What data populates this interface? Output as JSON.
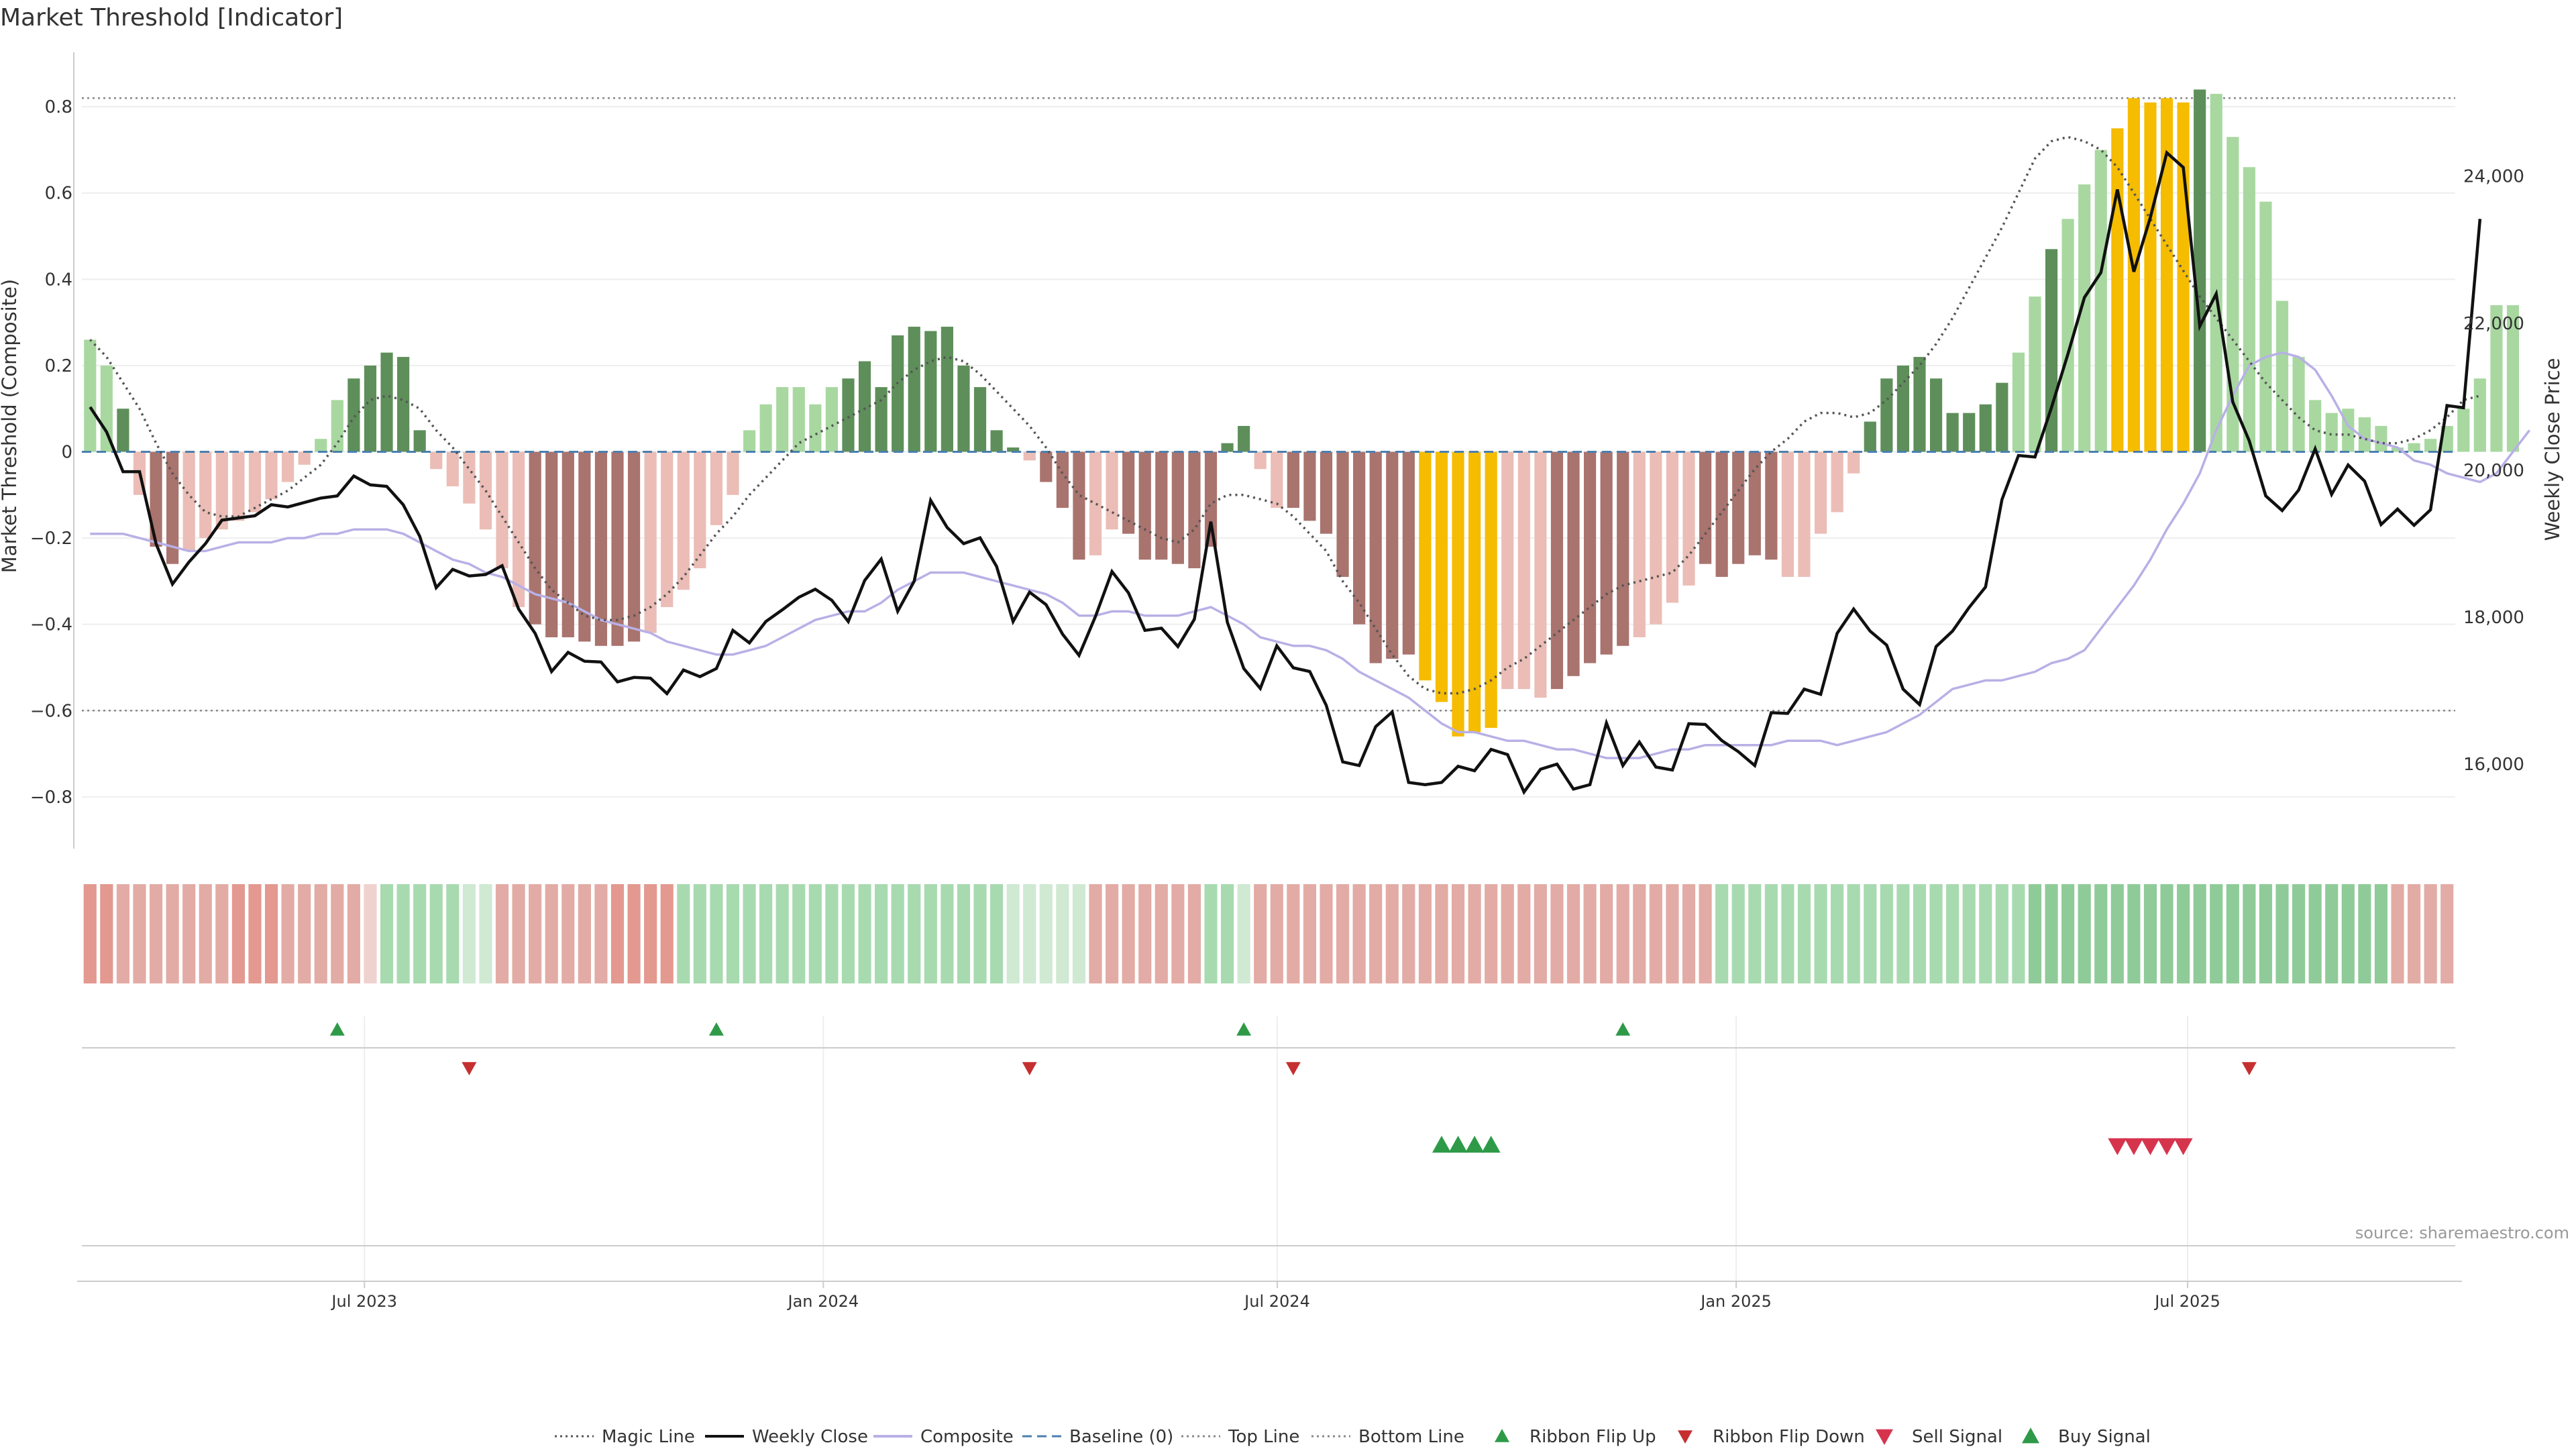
{
  "title": "Market Threshold [Indicator]",
  "source": "source: sharemaestro.com",
  "colors": {
    "dark_green": "#5e8f5a",
    "light_green": "#a8d8a0",
    "dark_red": "#a9736e",
    "light_red": "#ebbdb6",
    "gold": "#f5bc00",
    "weekly_close": "#111111",
    "composite": "#b8b0e6",
    "magic": "#555555",
    "baseline": "#4a7fb0",
    "buy": "#2e9a48",
    "sell": "#d6344d"
  },
  "legend": [
    {
      "label": "Magic Line",
      "kind": "dotted",
      "color": "#555555"
    },
    {
      "label": "Weekly Close",
      "kind": "solid",
      "color": "#111111"
    },
    {
      "label": "Composite",
      "kind": "solid",
      "color": "#b8b0e6"
    },
    {
      "label": "Baseline (0)",
      "kind": "dashed",
      "color": "#4a7fb0"
    },
    {
      "label": "Top Line",
      "kind": "dotted",
      "color": "#888888"
    },
    {
      "label": "Bottom Line",
      "kind": "dotted",
      "color": "#888888"
    },
    {
      "label": "Ribbon Flip Up",
      "kind": "tri-up",
      "color": "#2e9a48"
    },
    {
      "label": "Ribbon Flip Down",
      "kind": "tri-down",
      "color": "#c62f2f"
    },
    {
      "label": "Sell Signal",
      "kind": "tri-down-big",
      "color": "#d6344d"
    },
    {
      "label": "Buy Signal",
      "kind": "tri-up-big",
      "color": "#2e9a48"
    }
  ],
  "chart_data": {
    "type": "bar",
    "title": "Market Threshold [Indicator]",
    "ylabel": "Market Threshold (Composite)",
    "y2label": "Weekly Close Price",
    "ylim": [
      -0.92,
      0.92
    ],
    "y2lim": [
      14850,
      25650
    ],
    "yticks": [
      -0.8,
      -0.6,
      -0.4,
      -0.2,
      0,
      0.2,
      0.4,
      0.6,
      0.8
    ],
    "ytick_labels": [
      "−0.8",
      "−0.6",
      "−0.4",
      "−0.2",
      "0",
      "0.2",
      "0.4",
      "0.6",
      "0.8"
    ],
    "y2ticks": [
      16000,
      18000,
      20000,
      22000,
      24000
    ],
    "y2tick_labels": [
      "16,000",
      "18,000",
      "20,000",
      "22,000",
      "24,000"
    ],
    "top_line": 0.82,
    "bottom_line": -0.6,
    "baseline": 0,
    "x_range": [
      "2023-03-13",
      "2025-10-13"
    ],
    "xticks": [
      {
        "label": "Jul 2023",
        "date": "2023-07-01"
      },
      {
        "label": "Jan 2024",
        "date": "2024-01-01"
      },
      {
        "label": "Jul 2024",
        "date": "2024-07-01"
      },
      {
        "label": "Jan 2025",
        "date": "2025-01-01"
      },
      {
        "label": "Jul 2025",
        "date": "2025-07-01"
      }
    ],
    "n_weeks": 144,
    "composite_bars": [
      0.26,
      0.2,
      0.1,
      -0.1,
      -0.22,
      -0.26,
      -0.23,
      -0.2,
      -0.18,
      -0.16,
      -0.14,
      -0.11,
      -0.07,
      -0.03,
      0.03,
      0.12,
      0.17,
      0.2,
      0.23,
      0.22,
      0.05,
      -0.04,
      -0.08,
      -0.12,
      -0.18,
      -0.27,
      -0.36,
      -0.4,
      -0.43,
      -0.43,
      -0.44,
      -0.45,
      -0.45,
      -0.44,
      -0.42,
      -0.36,
      -0.32,
      -0.27,
      -0.17,
      -0.1,
      0.05,
      0.11,
      0.15,
      0.15,
      0.11,
      0.15,
      0.17,
      0.21,
      0.15,
      0.27,
      0.29,
      0.28,
      0.29,
      0.2,
      0.15,
      0.05,
      0.01,
      -0.02,
      -0.07,
      -0.13,
      -0.25,
      -0.24,
      -0.18,
      -0.19,
      -0.25,
      -0.25,
      -0.26,
      -0.27,
      -0.22,
      0.02,
      0.06,
      -0.04,
      -0.13,
      -0.13,
      -0.16,
      -0.19,
      -0.29,
      -0.4,
      -0.49,
      -0.48,
      -0.47,
      -0.53,
      -0.58,
      -0.66,
      -0.65,
      -0.64,
      -0.55,
      -0.55,
      -0.57,
      -0.55,
      -0.52,
      -0.49,
      -0.47,
      -0.45,
      -0.43,
      -0.4,
      -0.35,
      -0.31,
      -0.26,
      -0.29,
      -0.26,
      -0.24,
      -0.25,
      -0.29,
      -0.29,
      -0.19,
      -0.14,
      -0.05,
      0.07,
      0.17,
      0.2,
      0.22,
      0.17,
      0.09,
      0.09,
      0.11,
      0.16,
      0.23,
      0.36,
      0.47,
      0.54,
      0.62,
      0.7,
      0.75,
      0.82,
      0.81,
      0.82,
      0.81,
      0.84,
      0.83,
      0.73,
      0.66,
      0.58,
      0.35,
      0.22,
      0.12,
      0.09,
      0.1,
      0.08,
      0.06,
      0.01,
      0.02,
      0.03,
      0.06,
      0.1,
      0.17,
      0.34,
      0.34
    ],
    "bar_shades": "lldlddlllllllllldddddlllllldddddddlllllllllllldddddddddddldddllddddddddllddddddddlllllllldddddlllldddddllllldddddddddlldlllldddddlll",
    "gold_bars": [
      81,
      82,
      83,
      84,
      85,
      123,
      124,
      125,
      126,
      127
    ],
    "weekly_close": [
      20860,
      20520,
      19980,
      19980,
      19000,
      18450,
      18750,
      19000,
      19320,
      19350,
      19380,
      19530,
      19500,
      19560,
      19620,
      19650,
      19920,
      19800,
      19780,
      19530,
      19100,
      18400,
      18650,
      18560,
      18580,
      18700,
      18110,
      17780,
      17260,
      17520,
      17400,
      17390,
      17120,
      17180,
      17170,
      16960,
      17280,
      17190,
      17300,
      17820,
      17650,
      17940,
      18100,
      18270,
      18380,
      18230,
      17940,
      18500,
      18790,
      18080,
      18490,
      19590,
      19220,
      19000,
      19080,
      18690,
      17940,
      18340,
      18170,
      17770,
      17480,
      18010,
      18620,
      18330,
      17820,
      17850,
      17600,
      17970,
      19300,
      17930,
      17300,
      17030,
      17610,
      17310,
      17260,
      16800,
      16030,
      15980,
      16510,
      16710,
      15750,
      15720,
      15750,
      15970,
      15910,
      16200,
      16130,
      15620,
      15930,
      16000,
      15660,
      15720,
      16560,
      15980,
      16300,
      15960,
      15920,
      16550,
      16540,
      16320,
      16170,
      15980,
      16700,
      16690,
      17020,
      16950,
      17780,
      18110,
      17810,
      17620,
      17020,
      16810,
      17600,
      17810,
      18130,
      18410,
      19600,
      20200,
      20180,
      20850,
      21580,
      22350,
      22690,
      23820,
      22700,
      23440,
      24320,
      24120,
      21960,
      22400,
      20930,
      20400,
      19650,
      19450,
      19730,
      20290,
      19670,
      20070,
      19850,
      19260,
      19470,
      19250,
      19460,
      20880,
      20850,
      23420
    ],
    "composite": [
      -0.19,
      -0.19,
      -0.19,
      -0.2,
      -0.21,
      -0.22,
      -0.23,
      -0.23,
      -0.22,
      -0.21,
      -0.21,
      -0.21,
      -0.2,
      -0.2,
      -0.19,
      -0.19,
      -0.18,
      -0.18,
      -0.18,
      -0.19,
      -0.21,
      -0.23,
      -0.25,
      -0.26,
      -0.28,
      -0.29,
      -0.31,
      -0.33,
      -0.34,
      -0.35,
      -0.37,
      -0.39,
      -0.4,
      -0.41,
      -0.42,
      -0.44,
      -0.45,
      -0.46,
      -0.47,
      -0.47,
      -0.46,
      -0.45,
      -0.43,
      -0.41,
      -0.39,
      -0.38,
      -0.37,
      -0.37,
      -0.35,
      -0.32,
      -0.3,
      -0.28,
      -0.28,
      -0.28,
      -0.29,
      -0.3,
      -0.31,
      -0.32,
      -0.33,
      -0.35,
      -0.38,
      -0.38,
      -0.37,
      -0.37,
      -0.38,
      -0.38,
      -0.38,
      -0.37,
      -0.36,
      -0.38,
      -0.4,
      -0.43,
      -0.44,
      -0.45,
      -0.45,
      -0.46,
      -0.48,
      -0.51,
      -0.53,
      -0.55,
      -0.57,
      -0.6,
      -0.63,
      -0.65,
      -0.65,
      -0.66,
      -0.67,
      -0.67,
      -0.68,
      -0.69,
      -0.69,
      -0.7,
      -0.71,
      -0.71,
      -0.71,
      -0.7,
      -0.69,
      -0.69,
      -0.68,
      -0.68,
      -0.68,
      -0.68,
      -0.68,
      -0.67,
      -0.67,
      -0.67,
      -0.68,
      -0.67,
      -0.66,
      -0.65,
      -0.63,
      -0.61,
      -0.58,
      -0.55,
      -0.54,
      -0.53,
      -0.53,
      -0.52,
      -0.51,
      -0.49,
      -0.48,
      -0.46,
      -0.41,
      -0.36,
      -0.31,
      -0.25,
      -0.18,
      -0.12,
      -0.05,
      0.05,
      0.13,
      0.2,
      0.22,
      0.23,
      0.22,
      0.19,
      0.13,
      0.06,
      0.03,
      0.02,
      0.01,
      -0.02,
      -0.03,
      -0.05,
      -0.06,
      -0.07,
      -0.05,
      0.0,
      0.05
    ],
    "magic_line": [
      0.26,
      0.22,
      0.16,
      0.1,
      0.02,
      -0.05,
      -0.1,
      -0.14,
      -0.15,
      -0.15,
      -0.13,
      -0.11,
      -0.09,
      -0.06,
      -0.03,
      0.02,
      0.08,
      0.12,
      0.13,
      0.12,
      0.1,
      0.05,
      0.01,
      -0.04,
      -0.09,
      -0.15,
      -0.21,
      -0.27,
      -0.32,
      -0.35,
      -0.38,
      -0.39,
      -0.39,
      -0.38,
      -0.36,
      -0.33,
      -0.29,
      -0.24,
      -0.19,
      -0.15,
      -0.1,
      -0.06,
      -0.02,
      0.02,
      0.04,
      0.06,
      0.08,
      0.1,
      0.12,
      0.16,
      0.19,
      0.21,
      0.22,
      0.21,
      0.18,
      0.14,
      0.1,
      0.06,
      0.01,
      -0.05,
      -0.1,
      -0.12,
      -0.14,
      -0.16,
      -0.18,
      -0.2,
      -0.21,
      -0.18,
      -0.12,
      -0.1,
      -0.1,
      -0.11,
      -0.12,
      -0.15,
      -0.19,
      -0.23,
      -0.3,
      -0.35,
      -0.41,
      -0.47,
      -0.52,
      -0.55,
      -0.56,
      -0.56,
      -0.55,
      -0.53,
      -0.5,
      -0.48,
      -0.45,
      -0.42,
      -0.39,
      -0.36,
      -0.33,
      -0.31,
      -0.3,
      -0.29,
      -0.28,
      -0.24,
      -0.19,
      -0.14,
      -0.09,
      -0.04,
      0.0,
      0.03,
      0.07,
      0.09,
      0.09,
      0.08,
      0.09,
      0.12,
      0.16,
      0.2,
      0.25,
      0.31,
      0.38,
      0.45,
      0.52,
      0.6,
      0.68,
      0.72,
      0.73,
      0.72,
      0.7,
      0.66,
      0.6,
      0.54,
      0.48,
      0.42,
      0.36,
      0.31,
      0.26,
      0.21,
      0.16,
      0.12,
      0.08,
      0.05,
      0.04,
      0.04,
      0.03,
      0.02,
      0.02,
      0.03,
      0.05,
      0.08,
      0.12,
      0.13
    ],
    "ribbon_color_codes": "aabbbbbbbaaabbbbbceeeeeffbbbbbbbaaaaeeeeeeeeeeeeeeeeeeeefffffbbbbbbbeefbbbbbbbbbbbbbbbbbbbbbbbbbbbbeeeeeeeeeeeeeeeeeeeggggggggggggggggggggggbbbbbbbbbbbbb",
    "ribbon_colors": {
      "a": "#e39890",
      "b": "#e3aba5",
      "c": "#efd2ce",
      "e": "#a8dab0",
      "f": "#cfe9d2",
      "g": "#8fcb98"
    },
    "ribbon_flip_up_weeks": [
      15,
      38,
      70,
      93
    ],
    "ribbon_flip_down_weeks": [
      23,
      57,
      73,
      131
    ],
    "buy_signal_weeks": [
      82,
      83,
      84,
      85
    ],
    "sell_signal_weeks": [
      123,
      124,
      125,
      126,
      127
    ]
  }
}
